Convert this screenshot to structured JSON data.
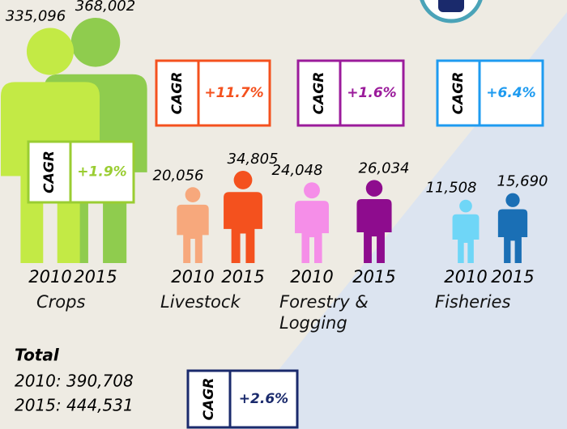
{
  "chart_data": {
    "type": "pictogram",
    "categories": [
      "Crops",
      "Livestock",
      "Forestry & Logging",
      "Fisheries"
    ],
    "series": [
      {
        "name": "2010",
        "values": [
          335096,
          20056,
          24048,
          11508
        ],
        "value_labels": [
          "335,096",
          "20,056",
          "24,048",
          "11,508"
        ],
        "colors": [
          "#c3ea45",
          "#f7a87c",
          "#f58ee8",
          "#6fd6f7"
        ]
      },
      {
        "name": "2015",
        "values": [
          368002,
          34805,
          26034,
          15690
        ],
        "value_labels": [
          "368,002",
          "34,805",
          "26,034",
          "15,690"
        ],
        "colors": [
          "#8fcc4e",
          "#f4511e",
          "#8e0c8e",
          "#1a6fb5"
        ]
      }
    ],
    "cagr": {
      "label": "CAGR",
      "values": [
        1.9,
        11.7,
        1.6,
        6.4
      ],
      "value_labels": [
        "+1.9%",
        "+11.7%",
        "+1.6%",
        "+6.4%"
      ],
      "colors": [
        "#9acd32",
        "#f4511e",
        "#9b1b9b",
        "#1e9bf0"
      ]
    },
    "total": {
      "title": "Total",
      "values": [
        390708,
        444531
      ],
      "value_labels": [
        "2010: 390,708",
        "2015: 444,531"
      ],
      "cagr": 2.6,
      "cagr_label": "+2.6%",
      "color": "#1a2a6c"
    }
  }
}
